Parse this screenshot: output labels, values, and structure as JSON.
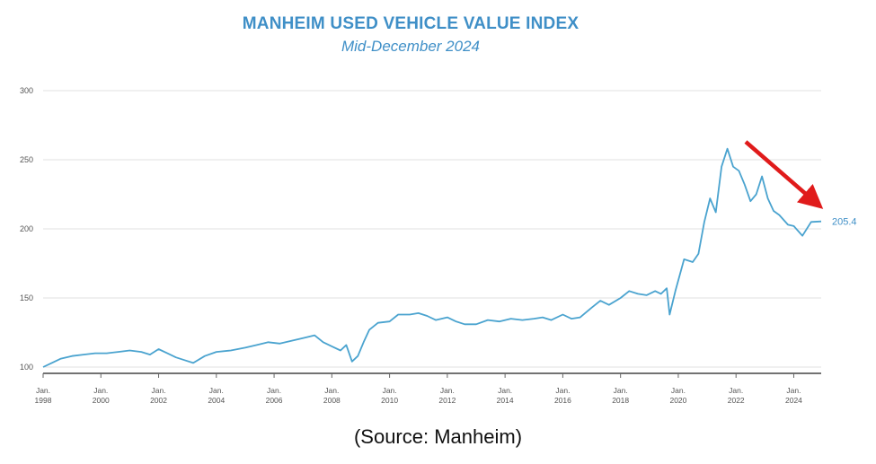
{
  "chart_data": {
    "type": "line",
    "title": "MANHEIM USED VEHICLE VALUE INDEX",
    "subtitle": "Mid-December 2024",
    "xlabel": "",
    "ylabel": "",
    "ylim": [
      100,
      300
    ],
    "xlim": [
      1998.0,
      2024.95
    ],
    "y_ticks": [
      "100",
      "150",
      "200",
      "250",
      "300"
    ],
    "y_tick_values": [
      100,
      150,
      200,
      250,
      300
    ],
    "x_ticks": [
      {
        "top": "Jan.",
        "bottom": "1998",
        "year": 1998
      },
      {
        "top": "Jan.",
        "bottom": "2000",
        "year": 2000
      },
      {
        "top": "Jan.",
        "bottom": "2002",
        "year": 2002
      },
      {
        "top": "Jan.",
        "bottom": "2004",
        "year": 2004
      },
      {
        "top": "Jan.",
        "bottom": "2006",
        "year": 2006
      },
      {
        "top": "Jan.",
        "bottom": "2008",
        "year": 2008
      },
      {
        "top": "Jan.",
        "bottom": "2010",
        "year": 2010
      },
      {
        "top": "Jan.",
        "bottom": "2012",
        "year": 2012
      },
      {
        "top": "Jan.",
        "bottom": "2014",
        "year": 2014
      },
      {
        "top": "Jan.",
        "bottom": "2016",
        "year": 2016
      },
      {
        "top": "Jan.",
        "bottom": "2018",
        "year": 2018
      },
      {
        "top": "Jan.",
        "bottom": "2020",
        "year": 2020
      },
      {
        "top": "Jan.",
        "bottom": "2022",
        "year": 2022
      },
      {
        "top": "Jan.",
        "bottom": "2024",
        "year": 2024
      }
    ],
    "grid": true,
    "series": [
      {
        "name": "Manheim Used Vehicle Value Index",
        "color": "#4aa3cf",
        "x": [
          1998.0,
          1998.3,
          1998.6,
          1999.0,
          1999.4,
          1999.8,
          2000.2,
          2000.6,
          2001.0,
          2001.4,
          2001.7,
          2002.0,
          2002.3,
          2002.6,
          2002.9,
          2003.2,
          2003.6,
          2004.0,
          2004.5,
          2005.0,
          2005.4,
          2005.8,
          2006.2,
          2006.6,
          2007.0,
          2007.4,
          2007.7,
          2008.0,
          2008.3,
          2008.5,
          2008.7,
          2008.9,
          2009.1,
          2009.3,
          2009.6,
          2010.0,
          2010.3,
          2010.7,
          2011.0,
          2011.3,
          2011.6,
          2012.0,
          2012.3,
          2012.6,
          2013.0,
          2013.4,
          2013.8,
          2014.2,
          2014.6,
          2015.0,
          2015.3,
          2015.6,
          2016.0,
          2016.3,
          2016.6,
          2017.0,
          2017.3,
          2017.6,
          2018.0,
          2018.3,
          2018.6,
          2018.9,
          2019.2,
          2019.4,
          2019.6,
          2019.7,
          2019.9,
          2020.2,
          2020.5,
          2020.7,
          2020.9,
          2021.1,
          2021.3,
          2021.5,
          2021.7,
          2021.9,
          2022.1,
          2022.3,
          2022.5,
          2022.7,
          2022.9,
          2023.1,
          2023.3,
          2023.5,
          2023.8,
          2024.0,
          2024.3,
          2024.6,
          2024.95
        ],
        "values": [
          100,
          103,
          106,
          108,
          109,
          110,
          110,
          111,
          112,
          111,
          109,
          113,
          110,
          107,
          105,
          103,
          108,
          111,
          112,
          114,
          116,
          118,
          117,
          119,
          121,
          123,
          118,
          115,
          112,
          116,
          104,
          108,
          118,
          127,
          132,
          133,
          138,
          138,
          139,
          137,
          134,
          136,
          133,
          131,
          131,
          134,
          133,
          135,
          134,
          135,
          136,
          134,
          138,
          135,
          136,
          143,
          148,
          145,
          150,
          155,
          153,
          152,
          155,
          153,
          157,
          138,
          155,
          178,
          176,
          182,
          205,
          222,
          212,
          245,
          258,
          245,
          242,
          232,
          220,
          225,
          238,
          222,
          213,
          210,
          203,
          202,
          195,
          205,
          205.4
        ]
      }
    ],
    "end_label": "205.4",
    "annotation": "downward-trend-arrow"
  },
  "source_caption": "(Source: Manheim)"
}
